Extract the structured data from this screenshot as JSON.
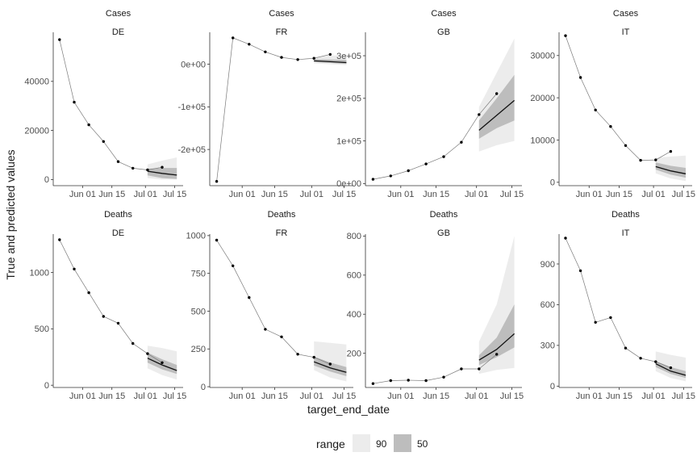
{
  "ylabel": "True and predicted values",
  "xlabel": "target_end_date",
  "legend": {
    "title": "range",
    "items": [
      {
        "label": "90",
        "color": "#ececec"
      },
      {
        "label": "50",
        "color": "#bdbdbd"
      }
    ],
    "position": "bottom"
  },
  "colors": {
    "band90": "#ececec",
    "band50": "#bdbdbd",
    "median": "#111111",
    "truth_line": "#7a7a7a",
    "truth_point": "#000000",
    "axis": "#333333",
    "text": "#4d4d4d"
  },
  "x_ticks": [
    {
      "day": 1,
      "label": "Jun 01"
    },
    {
      "day": 15,
      "label": "Jun 15"
    },
    {
      "day": 31,
      "label": "Jul 01"
    },
    {
      "day": 45,
      "label": "Jul 15"
    }
  ],
  "x_range_days": [
    -13,
    49
  ],
  "chart_data": [
    {
      "type": "line",
      "title": "Cases",
      "subtitle": "DE",
      "ylim": [
        -2500,
        60000
      ],
      "yticks": [
        {
          "v": 0,
          "l": "0"
        },
        {
          "v": 20000,
          "l": "20000"
        },
        {
          "v": 40000,
          "l": "40000"
        }
      ],
      "truth": {
        "x": [
          -10,
          -3,
          4,
          11,
          18,
          25,
          32,
          39
        ],
        "y": [
          57000,
          31500,
          22300,
          15500,
          7300,
          4600,
          3900,
          5000
        ]
      },
      "forecast": {
        "x": [
          32,
          39,
          46
        ],
        "median": [
          3400,
          2500,
          1800
        ],
        "lo50": [
          1700,
          600,
          200
        ],
        "hi50": [
          4400,
          4700,
          4700
        ],
        "lo90": [
          600,
          0,
          0
        ],
        "hi90": [
          6200,
          7700,
          9000
        ]
      }
    },
    {
      "type": "line",
      "title": "Cases",
      "subtitle": "FR",
      "ylim": [
        -285000,
        75000
      ],
      "yticks": [
        {
          "v": 0,
          "l": "0e+00"
        },
        {
          "v": -100000,
          "l": "-1e+05"
        },
        {
          "v": -200000,
          "l": "-2e+05"
        }
      ],
      "truth": {
        "x": [
          -10,
          -3,
          4,
          11,
          18,
          25,
          32,
          39
        ],
        "y": [
          -275000,
          62000,
          47000,
          29000,
          16000,
          11000,
          14000,
          23000
        ]
      },
      "forecast": {
        "x": [
          32,
          39,
          46
        ],
        "median": [
          8000,
          6000,
          4000
        ],
        "lo50": [
          5000,
          3000,
          1000
        ],
        "hi50": [
          12000,
          11000,
          10000
        ],
        "lo90": [
          2000,
          0,
          -2000
        ],
        "hi90": [
          17000,
          20000,
          22000
        ]
      }
    },
    {
      "type": "line",
      "title": "Cases",
      "subtitle": "GB",
      "ylim": [
        -5000,
        355000
      ],
      "yticks": [
        {
          "v": 0,
          "l": "0e+00"
        },
        {
          "v": 100000,
          "l": "1e+05"
        },
        {
          "v": 200000,
          "l": "2e+05"
        },
        {
          "v": 300000,
          "l": "3e+05"
        }
      ],
      "truth": {
        "x": [
          -10,
          -3,
          4,
          11,
          18,
          25,
          32,
          39
        ],
        "y": [
          10000,
          18000,
          30000,
          46000,
          63000,
          97000,
          162000,
          211000
        ]
      },
      "forecast": {
        "x": [
          32,
          39,
          46
        ],
        "median": [
          125000,
          160000,
          195000
        ],
        "lo50": [
          105000,
          130000,
          148000
        ],
        "hi50": [
          148000,
          200000,
          255000
        ],
        "lo90": [
          75000,
          90000,
          100000
        ],
        "hi90": [
          180000,
          260000,
          340000
        ]
      }
    },
    {
      "type": "line",
      "title": "Cases",
      "subtitle": "IT",
      "ylim": [
        -800,
        35500
      ],
      "yticks": [
        {
          "v": 0,
          "l": "0"
        },
        {
          "v": 10000,
          "l": "10000"
        },
        {
          "v": 20000,
          "l": "20000"
        },
        {
          "v": 30000,
          "l": "30000"
        }
      ],
      "truth": {
        "x": [
          -10,
          -3,
          4,
          11,
          18,
          25,
          32,
          39
        ],
        "y": [
          34700,
          24800,
          17100,
          13200,
          8700,
          5200,
          5300,
          7300
        ]
      },
      "forecast": {
        "x": [
          32,
          39,
          46
        ],
        "median": [
          3700,
          2700,
          2000
        ],
        "lo50": [
          3000,
          1800,
          1100
        ],
        "hi50": [
          4700,
          3900,
          3400
        ],
        "lo90": [
          2100,
          900,
          300
        ],
        "hi90": [
          5800,
          6100,
          6300
        ]
      }
    },
    {
      "type": "line",
      "title": "Deaths",
      "subtitle": "DE",
      "ylim": [
        -20,
        1340
      ],
      "yticks": [
        {
          "v": 0,
          "l": "0"
        },
        {
          "v": 500,
          "l": "500"
        },
        {
          "v": 1000,
          "l": "1000"
        }
      ],
      "truth": {
        "x": [
          -10,
          -3,
          4,
          11,
          18,
          25,
          32,
          39
        ],
        "y": [
          1290,
          1030,
          820,
          610,
          550,
          370,
          280,
          200
        ]
      },
      "forecast": {
        "x": [
          32,
          39,
          46
        ],
        "median": [
          240,
          180,
          130
        ],
        "lo50": [
          200,
          140,
          100
        ],
        "hi50": [
          290,
          230,
          180
        ],
        "lo90": [
          150,
          90,
          50
        ],
        "hi90": [
          350,
          330,
          300
        ]
      }
    },
    {
      "type": "line",
      "title": "Deaths",
      "subtitle": "FR",
      "ylim": [
        -5,
        1010
      ],
      "yticks": [
        {
          "v": 0,
          "l": "0"
        },
        {
          "v": 250,
          "l": "250"
        },
        {
          "v": 500,
          "l": "500"
        },
        {
          "v": 750,
          "l": "750"
        },
        {
          "v": 1000,
          "l": "1000"
        }
      ],
      "truth": {
        "x": [
          -10,
          -3,
          4,
          11,
          18,
          25,
          32,
          39
        ],
        "y": [
          970,
          800,
          590,
          380,
          330,
          215,
          195,
          150
        ]
      },
      "forecast": {
        "x": [
          32,
          39,
          46
        ],
        "median": [
          165,
          125,
          95
        ],
        "lo50": [
          140,
          100,
          70
        ],
        "hi50": [
          200,
          160,
          130
        ],
        "lo90": [
          110,
          60,
          35
        ],
        "hi90": [
          300,
          290,
          280
        ]
      }
    },
    {
      "type": "line",
      "title": "Deaths",
      "subtitle": "GB",
      "ylim": [
        25,
        810
      ],
      "yticks": [
        {
          "v": 200,
          "l": "200"
        },
        {
          "v": 400,
          "l": "400"
        },
        {
          "v": 600,
          "l": "600"
        },
        {
          "v": 800,
          "l": "800"
        }
      ],
      "truth": {
        "x": [
          -10,
          -3,
          4,
          11,
          18,
          25,
          32,
          39
        ],
        "y": [
          45,
          60,
          62,
          60,
          78,
          120,
          120,
          195
        ]
      },
      "forecast": {
        "x": [
          32,
          39,
          46
        ],
        "median": [
          165,
          220,
          300
        ],
        "lo50": [
          140,
          180,
          230
        ],
        "hi50": [
          190,
          280,
          450
        ],
        "lo90": [
          95,
          115,
          125
        ],
        "hi90": [
          260,
          450,
          800
        ]
      }
    },
    {
      "type": "line",
      "title": "Deaths",
      "subtitle": "IT",
      "ylim": [
        -10,
        1120
      ],
      "yticks": [
        {
          "v": 0,
          "l": "0"
        },
        {
          "v": 300,
          "l": "300"
        },
        {
          "v": 600,
          "l": "600"
        },
        {
          "v": 900,
          "l": "900"
        }
      ],
      "truth": {
        "x": [
          -10,
          -3,
          4,
          11,
          18,
          25,
          32,
          39
        ],
        "y": [
          1090,
          850,
          470,
          505,
          280,
          205,
          180,
          135
        ]
      },
      "forecast": {
        "x": [
          32,
          39,
          46
        ],
        "median": [
          165,
          110,
          80
        ],
        "lo50": [
          140,
          90,
          60
        ],
        "hi50": [
          185,
          140,
          110
        ],
        "lo90": [
          110,
          60,
          35
        ],
        "hi90": [
          255,
          230,
          210
        ]
      }
    }
  ]
}
